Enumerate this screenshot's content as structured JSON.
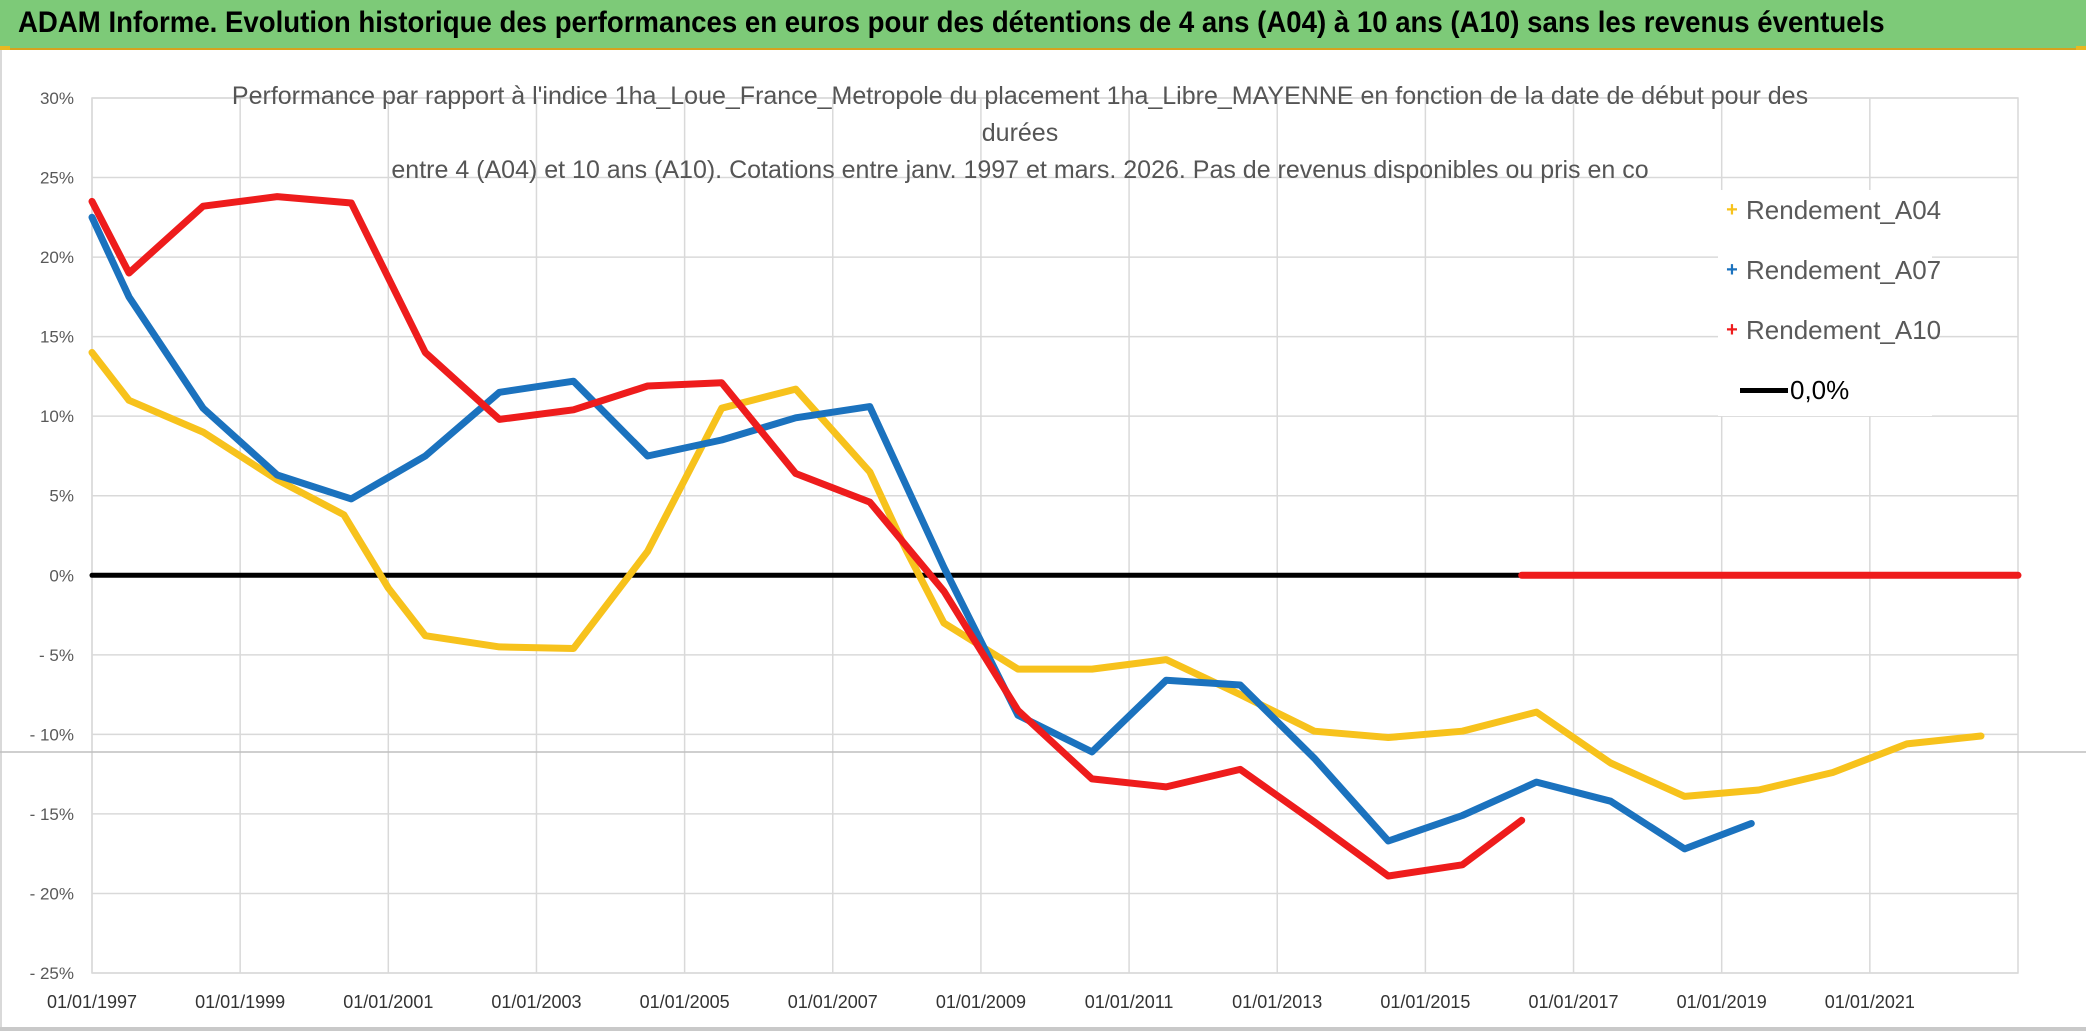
{
  "banner": {
    "title": "ADAM Informe. Evolution historique des performances en euros pour des détentions de 4 ans (A04) à 10 ans (A10) sans les revenus éventuels",
    "color": "#7dca78"
  },
  "chart_data": {
    "type": "line",
    "title_lines": [
      "Performance par rapport à l'indice 1ha_Loue_France_Metropole  du placement 1ha_Libre_MAYENNE en fonction de la date de début pour des",
      "durées",
      "entre 4 (A04) et 10 ans (A10). Cotations entre janv. 1997 et mars. 2026. Pas de revenus disponibles ou pris en co"
    ],
    "xlabel": "",
    "ylabel": "",
    "xlim": [
      1997,
      2023
    ],
    "ylim": [
      -25,
      30
    ],
    "y_ticks": [
      30,
      25,
      20,
      15,
      10,
      5,
      0,
      -5,
      -10,
      -15,
      -20,
      -25
    ],
    "y_tick_labels": [
      "30%",
      "25%",
      "20%",
      "15%",
      "10%",
      "5%",
      "0%",
      "- 5%",
      "- 10%",
      "- 15%",
      "- 20%",
      "- 25%"
    ],
    "x_ticks": [
      1997,
      1999,
      2001,
      2003,
      2005,
      2007,
      2009,
      2011,
      2013,
      2015,
      2017,
      2019,
      2021
    ],
    "x_tick_labels": [
      "01/01/1997",
      "01/01/1999",
      "01/01/2001",
      "01/01/2003",
      "01/01/2005",
      "01/01/2007",
      "01/01/2009",
      "01/01/2011",
      "01/01/2013",
      "01/01/2015",
      "01/01/2017",
      "01/01/2019",
      "01/01/2021"
    ],
    "grid": true,
    "legend_position": "top-right",
    "series": [
      {
        "name": "Rendement_A04",
        "color": "#f7c21c",
        "points": [
          [
            1997.0,
            14.0
          ],
          [
            1997.5,
            11.0
          ],
          [
            1998.5,
            9.0
          ],
          [
            1999.5,
            6.0
          ],
          [
            2000.4,
            3.8
          ],
          [
            2001.0,
            -0.8
          ],
          [
            2001.5,
            -3.8
          ],
          [
            2002.5,
            -4.5
          ],
          [
            2003.5,
            -4.6
          ],
          [
            2004.5,
            1.5
          ],
          [
            2005.5,
            10.5
          ],
          [
            2006.5,
            11.7
          ],
          [
            2007.5,
            6.5
          ],
          [
            2008.0,
            1.5
          ],
          [
            2008.5,
            -3.0
          ],
          [
            2009.5,
            -5.9
          ],
          [
            2010.5,
            -5.9
          ],
          [
            2011.5,
            -5.3
          ],
          [
            2012.5,
            -7.5
          ],
          [
            2013.5,
            -9.8
          ],
          [
            2014.5,
            -10.2
          ],
          [
            2015.5,
            -9.8
          ],
          [
            2016.5,
            -8.6
          ],
          [
            2017.5,
            -11.8
          ],
          [
            2018.5,
            -13.9
          ],
          [
            2019.5,
            -13.5
          ],
          [
            2020.5,
            -12.4
          ],
          [
            2021.5,
            -10.6
          ],
          [
            2022.5,
            -10.1
          ]
        ]
      },
      {
        "name": "Rendement_A07",
        "color": "#1b72be",
        "points": [
          [
            1997.0,
            22.5
          ],
          [
            1997.5,
            17.5
          ],
          [
            1998.5,
            10.5
          ],
          [
            1999.5,
            6.3
          ],
          [
            2000.5,
            4.8
          ],
          [
            2001.5,
            7.5
          ],
          [
            2002.5,
            11.5
          ],
          [
            2003.5,
            12.2
          ],
          [
            2004.5,
            7.5
          ],
          [
            2005.5,
            8.5
          ],
          [
            2006.5,
            9.9
          ],
          [
            2007.5,
            10.6
          ],
          [
            2008.5,
            0.5
          ],
          [
            2009.5,
            -8.8
          ],
          [
            2010.5,
            -11.1
          ],
          [
            2011.5,
            -6.6
          ],
          [
            2012.5,
            -6.9
          ],
          [
            2013.5,
            -11.5
          ],
          [
            2014.5,
            -16.7
          ],
          [
            2015.5,
            -15.1
          ],
          [
            2016.5,
            -13.0
          ],
          [
            2017.5,
            -14.2
          ],
          [
            2018.5,
            -17.2
          ],
          [
            2019.4,
            -15.6
          ]
        ]
      },
      {
        "name": "Rendement_A10",
        "color": "#ee1c1c",
        "points": [
          [
            1997.0,
            23.5
          ],
          [
            1997.5,
            19.0
          ],
          [
            1998.5,
            23.2
          ],
          [
            1999.5,
            23.8
          ],
          [
            2000.5,
            23.4
          ],
          [
            2001.5,
            14.0
          ],
          [
            2002.5,
            9.8
          ],
          [
            2003.5,
            10.4
          ],
          [
            2004.5,
            11.9
          ],
          [
            2005.5,
            12.1
          ],
          [
            2006.5,
            6.4
          ],
          [
            2007.5,
            4.6
          ],
          [
            2008.5,
            -1.0
          ],
          [
            2009.5,
            -8.5
          ],
          [
            2010.5,
            -12.8
          ],
          [
            2011.5,
            -13.3
          ],
          [
            2012.5,
            -12.2
          ],
          [
            2013.5,
            -15.5
          ],
          [
            2014.5,
            -18.9
          ],
          [
            2015.5,
            -18.2
          ],
          [
            2016.3,
            -15.4
          ]
        ]
      },
      {
        "name": "Rendement_A10",
        "color": "#ee1c1c",
        "legend": false,
        "points": [
          [
            2016.3,
            0.0
          ],
          [
            2023.0,
            0.0
          ]
        ]
      },
      {
        "name": "0,0%",
        "color": "#000000",
        "points": [
          [
            1997.0,
            0.0
          ],
          [
            2016.3,
            0.0
          ]
        ]
      }
    ]
  },
  "legend": {
    "items": [
      {
        "label": "Rendement_A04",
        "color": "#f7c21c",
        "marker": "+"
      },
      {
        "label": "Rendement_A07",
        "color": "#1b72be",
        "marker": "+"
      },
      {
        "label": "Rendement_A10",
        "color": "#ee1c1c",
        "marker": "+"
      },
      {
        "label": "0,0%",
        "color": "#000000",
        "marker": "line"
      }
    ]
  }
}
